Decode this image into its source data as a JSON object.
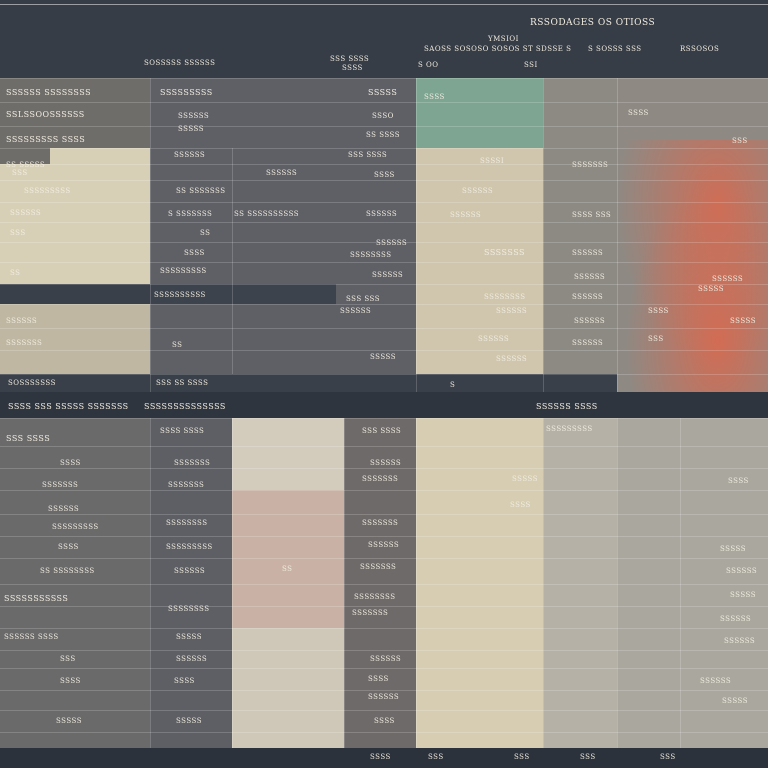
{
  "header": {
    "title": "RSSODAGES OS OTIOSS",
    "sub_main": "YMSIOI",
    "sub_line": "SAOSS SOSOSO SOSOS ST SDSSE S",
    "sub_right_a": "S SOSSS SSS",
    "sub_right_b": "RSSOSOS",
    "left_label": "SOSSSSS SSSSSS",
    "mid_label": "SSS SSSS",
    "mid_sub": "SSSS",
    "col3_a": "S  OO",
    "col3_b": "SSI",
    "col3_c": "OS"
  },
  "upper": {
    "left_rows": [
      "SSSSSS SSSSSSSS",
      "SSLSSOOSSSSSS",
      "SSSSSSSSS SSSS",
      "SS SSSSS",
      "SSS",
      "SSSSSSSSS",
      "SSSSSS",
      "SSS",
      "SS"
    ],
    "left_dark_row": "SSSS",
    "left_lower_rows": [
      "SSSSSS",
      "SSSSSSS",
      "SSSSSSSS"
    ],
    "left_footer": "SOSSSSSSS",
    "col2_rows": [
      "SSSSSSSSS",
      "SSSSSS",
      "SSSSS",
      "SS SSSS",
      "SSSSS",
      "SSSSSS",
      "SS SSSSSSS",
      "SSSS",
      "S SSSSSSS",
      "SSSSSSSSS"
    ],
    "col2_dark": "SSSSSSSSSS",
    "col2_footer": "SSS SS SSSS",
    "col2_d": "SS",
    "col3_rows": [
      "SSSSI",
      "SSSO",
      "SSS SSSS",
      "SSS SSSSS",
      "SSSSSS",
      "SS SSSSSSSSSS",
      "SSSSSS",
      "SSSSSS",
      "SSSSSSSS",
      "SSSSSS",
      "SSS SSS",
      "SSSSSS"
    ],
    "col4_rows": [
      "SSSSSS",
      "SSSSSS",
      "SSSSSSS",
      "SSSSSSSS",
      "SSSSSS",
      "SSSSSS",
      "SSSSSS",
      "SSSS"
    ],
    "col5_rows": [
      "SSSSSSS",
      "SSSS SSS",
      "SSSSSS",
      "SSSSSS",
      "SSSSSS",
      "SSSSSS",
      "SSSSSS"
    ],
    "col6_rows": [
      "SSSS",
      "SSS",
      "SSSSSS",
      "SSSSS",
      "SSSS",
      "SSSSS",
      "SSS"
    ],
    "footer_mid": "S"
  },
  "lower": {
    "header_left": "SSSS SSS SSSSS SSSSSSS",
    "header_mid": "SSSSSSSSSSSSSS",
    "header_right": "SSSSSS SSSS",
    "left_rows": [
      "SSS SSSS",
      "SSSS",
      "SSSSSSS",
      "SSSSSS",
      "SSSSSSSSS",
      "SSSS",
      "SS SSSSSSSS",
      "SSSSSSSSSSS",
      "SSSSSS SSSS",
      "SSS",
      "SSSS",
      "SSSSS"
    ],
    "col2_rows": [
      "SSSS SSSS",
      "SSSSSSS",
      "SSSSSSS",
      "SSSSSSSS",
      "SSSSSSSSS",
      "SSSSSS",
      "SSSSSSSS",
      "SSSSSSSSSS",
      "SSSSS",
      "SSSSSS",
      "SSSS",
      "SSSSS"
    ],
    "col3_mid": "SS",
    "col4_rows": [
      "SSS SSSS",
      "SSSSSS",
      "SSSSSSS",
      "SSSSSSS",
      "SSSSSS",
      "SSSSSSS",
      "SSSSSSSS",
      "SSSSSSS",
      "SSSSSS",
      "SSSS",
      "SSSSSS",
      "SSSS"
    ],
    "col6_rows": [
      "SSSSSSSSS",
      "SSSSS",
      "SSSS"
    ],
    "col7_rows": [
      "SSSS",
      "SSSSS",
      "SSSSSS",
      "SSSSS",
      "SSSSSS",
      "SSSSSS",
      "SSSSSS",
      "SSSSS"
    ],
    "footer": [
      "SSSS",
      "SSS",
      "SSS",
      "SSS",
      "SSS"
    ]
  },
  "colors": {
    "teal": "#7ea592",
    "coral": "#d9694f",
    "beige": "#d8d0b6",
    "slate": "#5f6066",
    "dark": "#343a43"
  }
}
